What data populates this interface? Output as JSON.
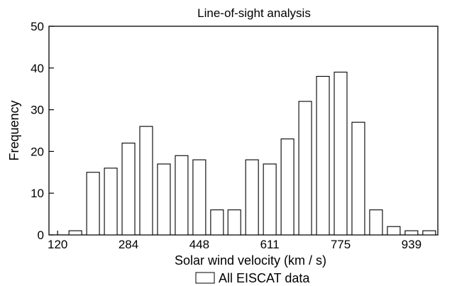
{
  "chart_data": {
    "type": "bar",
    "title": "Line-of-sight analysis",
    "xlabel": "Solar wind velocity (km / s)",
    "ylabel": "Frequency",
    "ylim": [
      0,
      50
    ],
    "yticks": [
      "0",
      "10",
      "20",
      "30",
      "40",
      "50"
    ],
    "xticks": [
      "120",
      "284",
      "448",
      "611",
      "775",
      "939"
    ],
    "xlim": [
      100,
      1000
    ],
    "bin_width": 41,
    "grid": false,
    "legend_position": "bottom-center",
    "series": [
      {
        "name": "All EISCAT data",
        "color": "#ffffff",
        "x": [
          161,
          202,
          243,
          284,
          325,
          366,
          407,
          448,
          489,
          529,
          570,
          611,
          652,
          693,
          734,
          775,
          816,
          857,
          898,
          939,
          980
        ],
        "values": [
          1,
          15,
          16,
          22,
          26,
          17,
          19,
          18,
          6,
          6,
          18,
          17,
          23,
          32,
          38,
          39,
          27,
          6,
          2,
          1,
          1
        ]
      }
    ]
  }
}
